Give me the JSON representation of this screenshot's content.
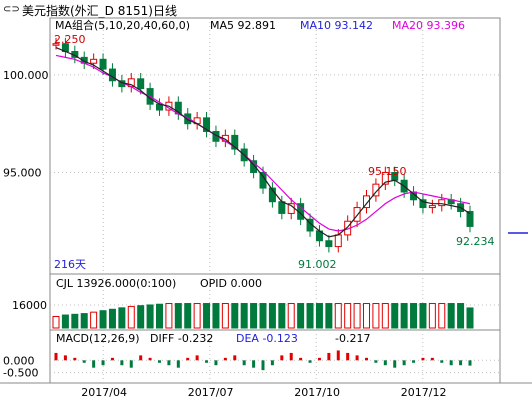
{
  "window": {
    "title": "美元指数(外汇_D 8151)日线",
    "icon": "link-icon"
  },
  "legend_main": {
    "ma_group": "MA组合(5,10,20,40,60,0)",
    "ma5": "MA5 92.891",
    "ma10": "MA10 93.142",
    "ma20": "MA20 93.396"
  },
  "legend_vol": {
    "cjl": "CJL  13926.000(0:100)",
    "opid": "OPID   0.000"
  },
  "legend_macd": {
    "macd": "MACD(12,26,9)",
    "diff": "DIFF   -0.232",
    "dea": "DEA   -0.123",
    "macd_val": "-0.217"
  },
  "annotations": {
    "high_first": "2.250",
    "mid_high": "95.150",
    "low": "91.002",
    "last": "92.234",
    "days": "216天"
  },
  "colors": {
    "up": "#e00000",
    "down": "#007a3d",
    "ma5": "#222222",
    "ma10": "#2222dd",
    "ma20": "#dd00dd",
    "ma40": "#008800",
    "ma60": "#8888aa",
    "diff": "#1a1a6a",
    "dea": "#333333",
    "grid": "#c0c0c0",
    "axis_text": "#000000"
  },
  "chart_data": {
    "type": "candlestick",
    "title": "美元指数(外汇_D 8151)日线",
    "y_main": {
      "ticks": [
        100.0,
        95.0
      ],
      "tick_labels": [
        "100.000",
        "95.000"
      ],
      "range": [
        90.0,
        102.2
      ]
    },
    "y_vol": {
      "ticks": [
        16000
      ],
      "tick_labels": [
        "16000"
      ],
      "range": [
        0,
        25000
      ]
    },
    "y_macd": {
      "ticks": [
        0.0,
        -0.5
      ],
      "tick_labels": [
        "0.000",
        "-0.500"
      ],
      "range": [
        -0.8,
        0.5
      ]
    },
    "x_ticks": [
      "2017/04",
      "2017/07",
      "2017/10",
      "2017/12"
    ],
    "x_tick_pos": [
      0.125,
      0.375,
      0.625,
      0.875
    ],
    "close_series": [
      101.6,
      101.2,
      100.9,
      100.6,
      100.8,
      100.3,
      99.7,
      99.4,
      99.8,
      99.3,
      98.5,
      98.2,
      98.6,
      98.0,
      97.5,
      97.8,
      97.1,
      96.6,
      96.9,
      96.2,
      95.6,
      95.0,
      94.2,
      93.5,
      92.9,
      93.4,
      92.6,
      92.0,
      91.5,
      91.2,
      91.8,
      92.5,
      93.2,
      93.8,
      94.4,
      95.0,
      94.6,
      94.0,
      93.6,
      93.2,
      93.3,
      93.6,
      93.4,
      93.0,
      92.234
    ],
    "ma5_series": [
      101.4,
      101.2,
      101.0,
      100.7,
      100.5,
      100.2,
      99.9,
      99.6,
      99.5,
      99.2,
      98.8,
      98.5,
      98.4,
      98.1,
      97.7,
      97.5,
      97.2,
      96.9,
      96.7,
      96.3,
      95.9,
      95.4,
      94.8,
      94.1,
      93.5,
      93.3,
      92.9,
      92.4,
      92.0,
      91.7,
      91.8,
      92.2,
      92.8,
      93.4,
      94.0,
      94.5,
      94.6,
      94.3,
      93.9,
      93.5,
      93.4,
      93.4,
      93.3,
      93.2,
      92.891
    ],
    "ma20_series": [
      101.0,
      100.9,
      100.8,
      100.6,
      100.4,
      100.1,
      99.9,
      99.6,
      99.4,
      99.1,
      98.9,
      98.6,
      98.3,
      98.0,
      97.8,
      97.5,
      97.2,
      96.9,
      96.6,
      96.3,
      95.9,
      95.5,
      95.1,
      94.6,
      94.1,
      93.6,
      93.2,
      92.8,
      92.4,
      92.1,
      92.0,
      92.1,
      92.3,
      92.6,
      93.0,
      93.4,
      93.7,
      93.9,
      94.0,
      93.9,
      93.8,
      93.7,
      93.6,
      93.5,
      93.396
    ],
    "volume_values": [
      8000,
      9000,
      9500,
      10000,
      11000,
      12000,
      13000,
      14000,
      15000,
      15500,
      16000,
      16500,
      17000,
      17000,
      17000,
      17000,
      17000,
      17000,
      17000,
      17000,
      17000,
      17000,
      17000,
      17000,
      17000,
      17000,
      17000,
      17000,
      17000,
      17000,
      17000,
      17000,
      17000,
      17000,
      17000,
      17000,
      17000,
      17000,
      17000,
      17000,
      17000,
      17000,
      17000,
      17000,
      13926
    ],
    "macd_values": [
      0.3,
      0.2,
      0.1,
      -0.1,
      -0.3,
      -0.2,
      0.1,
      -0.2,
      -0.3,
      0.2,
      0.1,
      -0.1,
      -0.2,
      -0.3,
      0.1,
      0.2,
      -0.1,
      -0.2,
      0.1,
      0.2,
      -0.2,
      -0.3,
      -0.4,
      -0.2,
      0.2,
      0.3,
      0.1,
      -0.1,
      0.1,
      0.3,
      0.4,
      0.3,
      0.2,
      0.1,
      -0.1,
      -0.2,
      -0.3,
      -0.2,
      -0.1,
      0.1,
      0.1,
      -0.1,
      -0.2,
      -0.2,
      -0.217
    ]
  }
}
